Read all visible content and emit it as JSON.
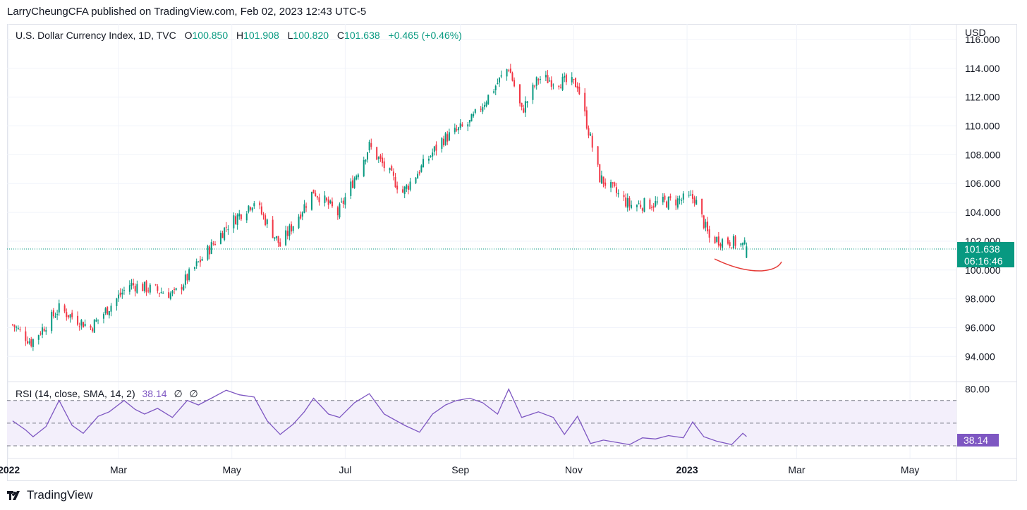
{
  "header": {
    "publish_line": "LarryCheungCFA published on TradingView.com, Feb 02, 2023 12:43 UTC-5"
  },
  "legend": {
    "symbol": "U.S. Dollar Currency Index, 1D, TVC",
    "open_label": "O",
    "open": "100.850",
    "high_label": "H",
    "high": "101.908",
    "low_label": "L",
    "low": "100.820",
    "close_label": "C",
    "close": "101.638",
    "change": "+0.465 (+0.46%)"
  },
  "rsi_legend": {
    "name": "RSI (14, close, SMA, 14, 2)",
    "value": "38.14",
    "na1": "∅",
    "na2": "∅"
  },
  "price_axis": {
    "currency": "USD",
    "last_price": "101.638",
    "countdown": "06:16:46",
    "rsi_value": "38.14"
  },
  "brand": {
    "name": "TradingView",
    "icon": "tradingview-logo-icon"
  },
  "colors": {
    "up": "#089981",
    "down": "#f23645",
    "rsi": "#7e57c2",
    "rsi_band": "#f3effb",
    "annotation": "#e53935"
  },
  "chart_data": [
    {
      "type": "candlestick",
      "title": "U.S. Dollar Currency Index, 1D, TVC",
      "ylim": [
        92.3,
        116.0
      ],
      "y_ticks": [
        "94.000",
        "96.000",
        "98.000",
        "100.000",
        "102.000",
        "104.000",
        "106.000",
        "108.000",
        "110.000",
        "112.000",
        "114.000",
        "116.000"
      ],
      "x_ticks": [
        "2022",
        "Mar",
        "May",
        "Jul",
        "Sep",
        "Nov",
        "2023",
        "Mar",
        "May"
      ],
      "x_tick_dates": [
        "2022-01-01",
        "2022-03-01",
        "2022-05-01",
        "2022-07-01",
        "2022-09-01",
        "2022-11-01",
        "2023-01-01",
        "2023-03-01",
        "2023-05-01"
      ],
      "xlim": [
        "2021-12-31",
        "2023-05-26"
      ],
      "grid": true,
      "last_price": 101.638,
      "close_path": [
        {
          "date": "2022-01-03",
          "value": 96.2
        },
        {
          "date": "2022-01-13",
          "value": 95.0
        },
        {
          "date": "2022-01-28",
          "value": 97.3
        },
        {
          "date": "2022-02-14",
          "value": 96.0
        },
        {
          "date": "2022-03-07",
          "value": 99.0
        },
        {
          "date": "2022-03-31",
          "value": 98.3
        },
        {
          "date": "2022-04-28",
          "value": 103.0
        },
        {
          "date": "2022-05-13",
          "value": 104.8
        },
        {
          "date": "2022-05-27",
          "value": 101.7
        },
        {
          "date": "2022-06-14",
          "value": 105.5
        },
        {
          "date": "2022-06-27",
          "value": 103.9
        },
        {
          "date": "2022-07-14",
          "value": 108.6
        },
        {
          "date": "2022-08-01",
          "value": 105.4
        },
        {
          "date": "2022-08-22",
          "value": 109.0
        },
        {
          "date": "2022-09-06",
          "value": 110.2
        },
        {
          "date": "2022-09-27",
          "value": 114.1
        },
        {
          "date": "2022-10-04",
          "value": 111.0
        },
        {
          "date": "2022-10-13",
          "value": 113.3
        },
        {
          "date": "2022-11-03",
          "value": 112.9
        },
        {
          "date": "2022-11-15",
          "value": 106.4
        },
        {
          "date": "2022-12-01",
          "value": 104.5
        },
        {
          "date": "2022-12-15",
          "value": 104.6
        },
        {
          "date": "2023-01-05",
          "value": 105.0
        },
        {
          "date": "2023-01-13",
          "value": 102.2
        },
        {
          "date": "2023-01-27",
          "value": 101.9
        },
        {
          "date": "2023-02-02",
          "value": 101.6
        }
      ]
    },
    {
      "type": "line",
      "title": "RSI (14, close, SMA, 14, 2)",
      "ylim": [
        20,
        86
      ],
      "y_ticks": [
        "80.00"
      ],
      "bands": [
        30,
        50,
        70
      ],
      "last_value": 38.14,
      "series": [
        {
          "name": "RSI",
          "points": [
            {
              "date": "2022-01-03",
              "value": 52
            },
            {
              "date": "2022-01-10",
              "value": 44
            },
            {
              "date": "2022-01-14",
              "value": 38
            },
            {
              "date": "2022-01-21",
              "value": 47
            },
            {
              "date": "2022-01-28",
              "value": 70
            },
            {
              "date": "2022-02-04",
              "value": 48
            },
            {
              "date": "2022-02-10",
              "value": 41
            },
            {
              "date": "2022-02-18",
              "value": 56
            },
            {
              "date": "2022-02-24",
              "value": 60
            },
            {
              "date": "2022-03-04",
              "value": 70
            },
            {
              "date": "2022-03-10",
              "value": 62
            },
            {
              "date": "2022-03-15",
              "value": 58
            },
            {
              "date": "2022-03-22",
              "value": 63
            },
            {
              "date": "2022-03-30",
              "value": 55
            },
            {
              "date": "2022-04-07",
              "value": 70
            },
            {
              "date": "2022-04-13",
              "value": 66
            },
            {
              "date": "2022-04-20",
              "value": 72
            },
            {
              "date": "2022-04-28",
              "value": 79
            },
            {
              "date": "2022-05-05",
              "value": 75
            },
            {
              "date": "2022-05-13",
              "value": 73
            },
            {
              "date": "2022-05-20",
              "value": 52
            },
            {
              "date": "2022-05-27",
              "value": 40
            },
            {
              "date": "2022-06-03",
              "value": 49
            },
            {
              "date": "2022-06-09",
              "value": 60
            },
            {
              "date": "2022-06-14",
              "value": 72
            },
            {
              "date": "2022-06-22",
              "value": 58
            },
            {
              "date": "2022-06-28",
              "value": 55
            },
            {
              "date": "2022-07-06",
              "value": 68
            },
            {
              "date": "2022-07-14",
              "value": 76
            },
            {
              "date": "2022-07-22",
              "value": 58
            },
            {
              "date": "2022-08-02",
              "value": 48
            },
            {
              "date": "2022-08-10",
              "value": 42
            },
            {
              "date": "2022-08-17",
              "value": 58
            },
            {
              "date": "2022-08-24",
              "value": 66
            },
            {
              "date": "2022-08-30",
              "value": 70
            },
            {
              "date": "2022-09-06",
              "value": 72
            },
            {
              "date": "2022-09-13",
              "value": 68
            },
            {
              "date": "2022-09-21",
              "value": 58
            },
            {
              "date": "2022-09-27",
              "value": 80
            },
            {
              "date": "2022-10-04",
              "value": 55
            },
            {
              "date": "2022-10-13",
              "value": 60
            },
            {
              "date": "2022-10-21",
              "value": 55
            },
            {
              "date": "2022-10-27",
              "value": 40
            },
            {
              "date": "2022-11-03",
              "value": 56
            },
            {
              "date": "2022-11-10",
              "value": 32
            },
            {
              "date": "2022-11-17",
              "value": 35
            },
            {
              "date": "2022-11-24",
              "value": 33
            },
            {
              "date": "2022-12-01",
              "value": 31
            },
            {
              "date": "2022-12-08",
              "value": 37
            },
            {
              "date": "2022-12-15",
              "value": 36
            },
            {
              "date": "2022-12-22",
              "value": 39
            },
            {
              "date": "2022-12-30",
              "value": 37
            },
            {
              "date": "2023-01-04",
              "value": 51
            },
            {
              "date": "2023-01-10",
              "value": 38
            },
            {
              "date": "2023-01-17",
              "value": 34
            },
            {
              "date": "2023-01-25",
              "value": 31
            },
            {
              "date": "2023-01-31",
              "value": 41
            },
            {
              "date": "2023-02-02",
              "value": 38.14
            }
          ]
        }
      ]
    }
  ]
}
